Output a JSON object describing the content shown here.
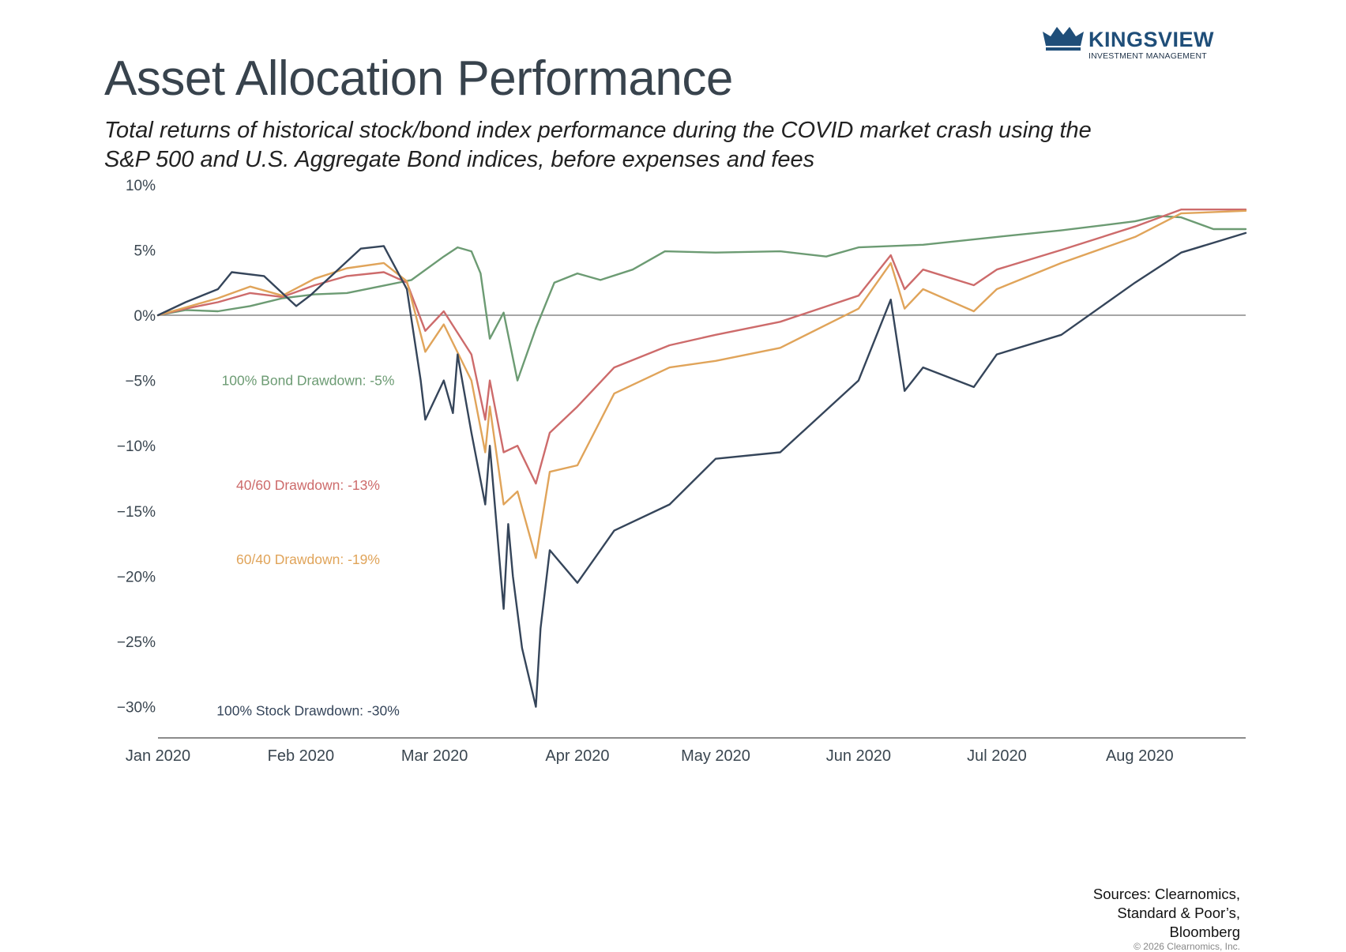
{
  "logo": {
    "name": "KINGSVIEW",
    "tagline": "INVESTMENT MANAGEMENT",
    "color": "#1f4e79"
  },
  "header": {
    "title": "Asset Allocation Performance",
    "subtitle": "Total returns of historical stock/bond index performance during the COVID market crash using the S&P 500 and U.S. Aggregate Bond indices, before expenses and fees"
  },
  "footer": {
    "sources": [
      "Sources: Clearnomics,",
      "Standard & Poor’s,",
      "Bloomberg"
    ],
    "copyright": "© 2026 Clearnomics, Inc."
  },
  "chart_data": {
    "type": "line",
    "title": "",
    "xlabel": "",
    "ylabel": "",
    "ylim": [
      -32,
      10
    ],
    "xlim": [
      "2020-01-01",
      "2020-08-24"
    ],
    "grid": false,
    "y_ticks": [
      {
        "value": 10,
        "label": "10%"
      },
      {
        "value": 5,
        "label": "5%"
      },
      {
        "value": 0,
        "label": "0%"
      },
      {
        "value": -5,
        "label": "−5%"
      },
      {
        "value": -10,
        "label": "−10%"
      },
      {
        "value": -15,
        "label": "−15%"
      },
      {
        "value": -20,
        "label": "−20%"
      },
      {
        "value": -25,
        "label": "−25%"
      },
      {
        "value": -30,
        "label": "−30%"
      }
    ],
    "x_ticks": [
      {
        "date": "2020-01-01",
        "label": "Jan 2020"
      },
      {
        "date": "2020-02-01",
        "label": "Feb 2020"
      },
      {
        "date": "2020-03-01",
        "label": "Mar 2020"
      },
      {
        "date": "2020-04-01",
        "label": "Apr 2020"
      },
      {
        "date": "2020-05-01",
        "label": "May 2020"
      },
      {
        "date": "2020-06-01",
        "label": "Jun 2020"
      },
      {
        "date": "2020-07-01",
        "label": "Jul 2020"
      },
      {
        "date": "2020-08-01",
        "label": "Aug 2020"
      }
    ],
    "series": [
      {
        "color": "#6c9b73",
        "label": "100% Bond Drawdown: -5%",
        "points": [
          [
            "2020-01-01",
            0
          ],
          [
            "2020-01-07",
            0.4
          ],
          [
            "2020-01-14",
            0.3
          ],
          [
            "2020-01-21",
            0.7
          ],
          [
            "2020-01-28",
            1.3
          ],
          [
            "2020-02-04",
            1.6
          ],
          [
            "2020-02-11",
            1.7
          ],
          [
            "2020-02-18",
            2.2
          ],
          [
            "2020-02-25",
            2.7
          ],
          [
            "2020-03-03",
            4.5
          ],
          [
            "2020-03-06",
            5.2
          ],
          [
            "2020-03-09",
            4.9
          ],
          [
            "2020-03-11",
            3.2
          ],
          [
            "2020-03-13",
            -1.8
          ],
          [
            "2020-03-16",
            0.2
          ],
          [
            "2020-03-19",
            -5.0
          ],
          [
            "2020-03-23",
            -1.0
          ],
          [
            "2020-03-27",
            2.5
          ],
          [
            "2020-04-01",
            3.2
          ],
          [
            "2020-04-06",
            2.7
          ],
          [
            "2020-04-13",
            3.5
          ],
          [
            "2020-04-20",
            4.9
          ],
          [
            "2020-05-01",
            4.8
          ],
          [
            "2020-05-15",
            4.9
          ],
          [
            "2020-05-25",
            4.5
          ],
          [
            "2020-06-01",
            5.2
          ],
          [
            "2020-06-15",
            5.4
          ],
          [
            "2020-07-01",
            6.0
          ],
          [
            "2020-07-15",
            6.5
          ],
          [
            "2020-07-31",
            7.2
          ],
          [
            "2020-08-05",
            7.6
          ],
          [
            "2020-08-10",
            7.5
          ],
          [
            "2020-08-17",
            6.6
          ],
          [
            "2020-08-24",
            6.6
          ]
        ]
      },
      {
        "color": "#cd6b6b",
        "label": "40/60 Drawdown: -13%",
        "points": [
          [
            "2020-01-01",
            0
          ],
          [
            "2020-01-07",
            0.5
          ],
          [
            "2020-01-14",
            1.0
          ],
          [
            "2020-01-21",
            1.7
          ],
          [
            "2020-01-28",
            1.4
          ],
          [
            "2020-02-04",
            2.3
          ],
          [
            "2020-02-11",
            3.0
          ],
          [
            "2020-02-19",
            3.3
          ],
          [
            "2020-02-24",
            2.5
          ],
          [
            "2020-02-28",
            -1.2
          ],
          [
            "2020-03-03",
            0.3
          ],
          [
            "2020-03-09",
            -3.0
          ],
          [
            "2020-03-12",
            -8.0
          ],
          [
            "2020-03-13",
            -5.0
          ],
          [
            "2020-03-16",
            -10.5
          ],
          [
            "2020-03-19",
            -10.0
          ],
          [
            "2020-03-23",
            -12.9
          ],
          [
            "2020-03-26",
            -9.0
          ],
          [
            "2020-04-01",
            -7.0
          ],
          [
            "2020-04-09",
            -4.0
          ],
          [
            "2020-04-21",
            -2.3
          ],
          [
            "2020-05-01",
            -1.5
          ],
          [
            "2020-05-15",
            -0.5
          ],
          [
            "2020-06-01",
            1.5
          ],
          [
            "2020-06-08",
            4.6
          ],
          [
            "2020-06-11",
            2.0
          ],
          [
            "2020-06-15",
            3.5
          ],
          [
            "2020-06-26",
            2.3
          ],
          [
            "2020-07-01",
            3.5
          ],
          [
            "2020-07-15",
            5.0
          ],
          [
            "2020-07-31",
            6.8
          ],
          [
            "2020-08-10",
            8.1
          ],
          [
            "2020-08-24",
            8.1
          ]
        ]
      },
      {
        "color": "#e0a45a",
        "label": "60/40 Drawdown: -19%",
        "points": [
          [
            "2020-01-01",
            0
          ],
          [
            "2020-01-07",
            0.6
          ],
          [
            "2020-01-14",
            1.3
          ],
          [
            "2020-01-21",
            2.2
          ],
          [
            "2020-01-28",
            1.5
          ],
          [
            "2020-02-04",
            2.8
          ],
          [
            "2020-02-11",
            3.6
          ],
          [
            "2020-02-19",
            4.0
          ],
          [
            "2020-02-24",
            2.6
          ],
          [
            "2020-02-28",
            -2.8
          ],
          [
            "2020-03-03",
            -0.7
          ],
          [
            "2020-03-09",
            -5.0
          ],
          [
            "2020-03-12",
            -10.5
          ],
          [
            "2020-03-13",
            -7.0
          ],
          [
            "2020-03-16",
            -14.5
          ],
          [
            "2020-03-19",
            -13.5
          ],
          [
            "2020-03-23",
            -18.6
          ],
          [
            "2020-03-26",
            -12.0
          ],
          [
            "2020-04-01",
            -11.5
          ],
          [
            "2020-04-09",
            -6.0
          ],
          [
            "2020-04-21",
            -4.0
          ],
          [
            "2020-05-01",
            -3.5
          ],
          [
            "2020-05-15",
            -2.5
          ],
          [
            "2020-06-01",
            0.5
          ],
          [
            "2020-06-08",
            4.0
          ],
          [
            "2020-06-11",
            0.5
          ],
          [
            "2020-06-15",
            2.0
          ],
          [
            "2020-06-26",
            0.3
          ],
          [
            "2020-07-01",
            2.0
          ],
          [
            "2020-07-15",
            4.0
          ],
          [
            "2020-07-31",
            6.0
          ],
          [
            "2020-08-10",
            7.8
          ],
          [
            "2020-08-24",
            8.0
          ]
        ]
      },
      {
        "color": "#35455a",
        "label": "100% Stock Drawdown: -30%",
        "points": [
          [
            "2020-01-01",
            0
          ],
          [
            "2020-01-07",
            1.0
          ],
          [
            "2020-01-14",
            2.0
          ],
          [
            "2020-01-17",
            3.3
          ],
          [
            "2020-01-24",
            3.0
          ],
          [
            "2020-01-31",
            0.7
          ],
          [
            "2020-02-03",
            1.5
          ],
          [
            "2020-02-10",
            3.8
          ],
          [
            "2020-02-14",
            5.1
          ],
          [
            "2020-02-19",
            5.3
          ],
          [
            "2020-02-24",
            2.0
          ],
          [
            "2020-02-27",
            -5.0
          ],
          [
            "2020-02-28",
            -8.0
          ],
          [
            "2020-03-03",
            -5.0
          ],
          [
            "2020-03-05",
            -7.5
          ],
          [
            "2020-03-06",
            -3.0
          ],
          [
            "2020-03-09",
            -9.0
          ],
          [
            "2020-03-12",
            -14.5
          ],
          [
            "2020-03-13",
            -10.0
          ],
          [
            "2020-03-16",
            -22.5
          ],
          [
            "2020-03-17",
            -16.0
          ],
          [
            "2020-03-18",
            -20.0
          ],
          [
            "2020-03-20",
            -25.5
          ],
          [
            "2020-03-23",
            -30.0
          ],
          [
            "2020-03-24",
            -24.0
          ],
          [
            "2020-03-26",
            -18.0
          ],
          [
            "2020-04-01",
            -20.5
          ],
          [
            "2020-04-09",
            -16.5
          ],
          [
            "2020-04-21",
            -14.5
          ],
          [
            "2020-05-01",
            -11.0
          ],
          [
            "2020-05-15",
            -10.5
          ],
          [
            "2020-06-01",
            -5.0
          ],
          [
            "2020-06-08",
            1.2
          ],
          [
            "2020-06-11",
            -5.8
          ],
          [
            "2020-06-15",
            -4.0
          ],
          [
            "2020-06-26",
            -5.5
          ],
          [
            "2020-07-01",
            -3.0
          ],
          [
            "2020-07-15",
            -1.5
          ],
          [
            "2020-07-31",
            2.5
          ],
          [
            "2020-08-10",
            4.8
          ],
          [
            "2020-08-24",
            6.3
          ]
        ]
      }
    ],
    "annotations": [
      {
        "text": "100% Bond Drawdown: -5%",
        "color": "#6c9b73",
        "y": -5
      },
      {
        "text": "40/60 Drawdown: -13%",
        "color": "#cd6b6b",
        "y": -13
      },
      {
        "text": "60/40 Drawdown: -19%",
        "color": "#e0a45a",
        "y": -18.7
      },
      {
        "text": "100% Stock Drawdown: -30%",
        "color": "#35455a",
        "y": -30.3
      }
    ]
  }
}
